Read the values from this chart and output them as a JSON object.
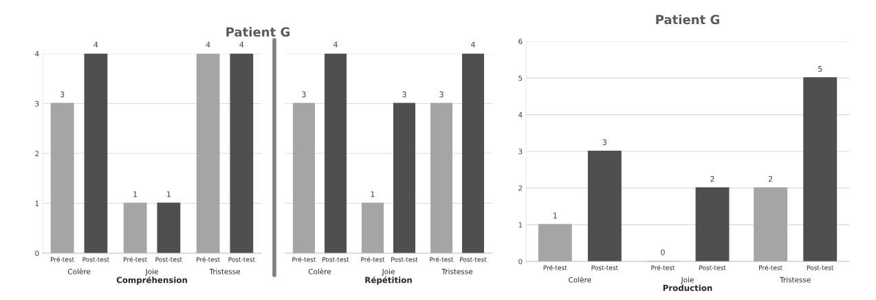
{
  "chart_data": [
    {
      "type": "bar",
      "title": "Patient G",
      "xlabel": "Compréhension",
      "categories": [
        "Colère",
        "Joie",
        "Tristesse"
      ],
      "series": [
        {
          "name": "Pré-test",
          "color": "#a5a5a5",
          "values": [
            3,
            1,
            4
          ]
        },
        {
          "name": "Post-test",
          "color": "#4f4f4f",
          "values": [
            4,
            1,
            4
          ]
        }
      ],
      "ylim": [
        0,
        4
      ],
      "yticks": [
        0,
        1,
        2,
        3,
        4
      ],
      "grid": "y",
      "data_labels": true,
      "legend": false
    },
    {
      "type": "bar",
      "xlabel": "Répétition",
      "categories": [
        "Colère",
        "Joie",
        "Tristesse"
      ],
      "series": [
        {
          "name": "Pré-test",
          "color": "#a5a5a5",
          "values": [
            3,
            1,
            3
          ]
        },
        {
          "name": "Post-test",
          "color": "#4f4f4f",
          "values": [
            4,
            3,
            4
          ]
        }
      ],
      "ylim": [
        0,
        4
      ],
      "yticks": [
        0,
        1,
        2,
        3,
        4
      ],
      "grid": "y",
      "data_labels": true,
      "legend": false,
      "tick_labels": "x"
    },
    {
      "type": "bar",
      "title": "Patient G",
      "xlabel": "Production",
      "categories": [
        "Colère",
        "Joie",
        "Tristesse"
      ],
      "series": [
        {
          "name": "Pré-test",
          "color": "#a5a5a5",
          "values": [
            1,
            0,
            2
          ]
        },
        {
          "name": "Post-test",
          "color": "#4f4f4f",
          "values": [
            3,
            2,
            5
          ]
        }
      ],
      "ylim": [
        0,
        6
      ],
      "yticks": [
        0,
        1,
        2,
        3,
        4,
        5,
        6
      ],
      "grid": "y",
      "data_labels": true,
      "legend": false
    }
  ]
}
